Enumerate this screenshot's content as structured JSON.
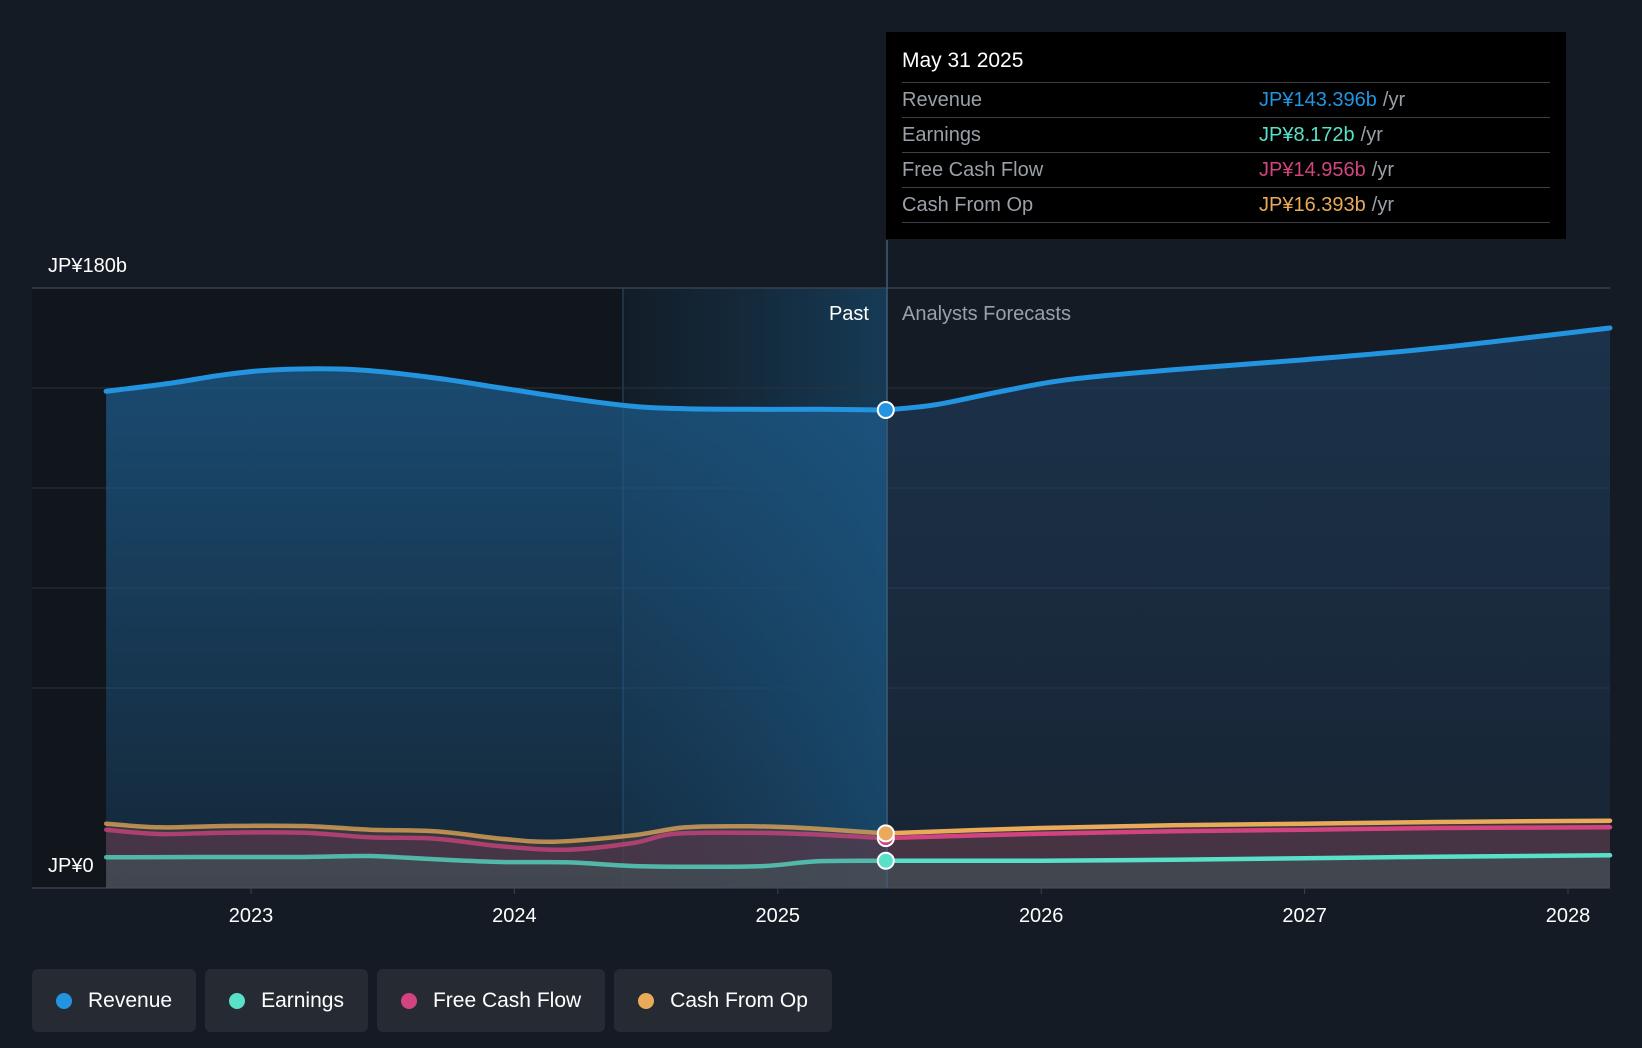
{
  "chart_data": {
    "type": "area",
    "y_top_label": "JP¥180b",
    "y_bottom_label": "JP¥0",
    "ylim": [
      0,
      180
    ],
    "x_ticks": [
      "2023",
      "2024",
      "2025",
      "2026",
      "2027",
      "2028"
    ],
    "past_label": "Past",
    "forecast_label": "Analysts Forecasts",
    "divider_date": "2025-05-31",
    "series": [
      {
        "name": "Revenue",
        "color": "#2394df",
        "past": [
          [
            2022.45,
            149
          ],
          [
            2022.7,
            151.5
          ],
          [
            2022.9,
            154
          ],
          [
            2023.1,
            155.5
          ],
          [
            2023.4,
            155.5
          ],
          [
            2023.7,
            153
          ],
          [
            2023.95,
            150
          ],
          [
            2024.2,
            147
          ],
          [
            2024.45,
            144.5
          ],
          [
            2024.65,
            143.8
          ],
          [
            2024.9,
            143.6
          ],
          [
            2025.15,
            143.6
          ],
          [
            2025.41,
            143.4
          ]
        ],
        "forecast": [
          [
            2025.41,
            143.4
          ],
          [
            2025.6,
            145
          ],
          [
            2025.85,
            149
          ],
          [
            2026.1,
            152.5
          ],
          [
            2026.5,
            155.5
          ],
          [
            2027.0,
            158.5
          ],
          [
            2027.5,
            162
          ],
          [
            2028.2,
            168
          ]
        ]
      },
      {
        "name": "Earnings",
        "color": "#58e0c8",
        "past": [
          [
            2022.45,
            9.2
          ],
          [
            2022.8,
            9.3
          ],
          [
            2023.2,
            9.3
          ],
          [
            2023.45,
            9.6
          ],
          [
            2023.7,
            8.6
          ],
          [
            2023.95,
            7.8
          ],
          [
            2024.2,
            7.7
          ],
          [
            2024.45,
            6.6
          ],
          [
            2024.7,
            6.4
          ],
          [
            2024.95,
            6.6
          ],
          [
            2025.15,
            8.0
          ],
          [
            2025.41,
            8.172
          ]
        ],
        "forecast": [
          [
            2025.41,
            8.172
          ],
          [
            2026.0,
            8.2
          ],
          [
            2026.5,
            8.5
          ],
          [
            2027.0,
            8.9
          ],
          [
            2027.5,
            9.4
          ],
          [
            2028.2,
            9.8
          ]
        ]
      },
      {
        "name": "Free Cash Flow",
        "color": "#d1447f",
        "past": [
          [
            2022.45,
            17.5
          ],
          [
            2022.65,
            16.2
          ],
          [
            2022.9,
            16.6
          ],
          [
            2023.2,
            16.6
          ],
          [
            2023.45,
            15.2
          ],
          [
            2023.7,
            14.8
          ],
          [
            2023.95,
            12.5
          ],
          [
            2024.2,
            11.5
          ],
          [
            2024.45,
            13.5
          ],
          [
            2024.6,
            16.2
          ],
          [
            2024.85,
            16.6
          ],
          [
            2025.1,
            16.2
          ],
          [
            2025.41,
            14.956
          ]
        ],
        "forecast": [
          [
            2025.41,
            14.956
          ],
          [
            2026.0,
            16.3
          ],
          [
            2026.5,
            17.0
          ],
          [
            2027.0,
            17.5
          ],
          [
            2027.5,
            18.0
          ],
          [
            2028.2,
            18.2
          ]
        ]
      },
      {
        "name": "Cash From Op",
        "color": "#e9ab5a",
        "past": [
          [
            2022.45,
            19.3
          ],
          [
            2022.65,
            18.2
          ],
          [
            2022.9,
            18.6
          ],
          [
            2023.2,
            18.6
          ],
          [
            2023.45,
            17.5
          ],
          [
            2023.7,
            17.0
          ],
          [
            2023.95,
            14.8
          ],
          [
            2024.15,
            13.9
          ],
          [
            2024.45,
            15.8
          ],
          [
            2024.65,
            18.2
          ],
          [
            2024.9,
            18.5
          ],
          [
            2025.1,
            18.0
          ],
          [
            2025.41,
            16.393
          ]
        ],
        "forecast": [
          [
            2025.41,
            16.393
          ],
          [
            2026.0,
            18.0
          ],
          [
            2026.5,
            18.8
          ],
          [
            2027.0,
            19.3
          ],
          [
            2027.5,
            19.8
          ],
          [
            2028.2,
            20.2
          ]
        ]
      }
    ]
  },
  "tooltip": {
    "date": "May 31 2025",
    "rows": [
      {
        "label": "Revenue",
        "value": "JP¥143.396b",
        "unit": "/yr",
        "color": "#2394df"
      },
      {
        "label": "Earnings",
        "value": "JP¥8.172b",
        "unit": "/yr",
        "color": "#58e0c8"
      },
      {
        "label": "Free Cash Flow",
        "value": "JP¥14.956b",
        "unit": "/yr",
        "color": "#d1447f"
      },
      {
        "label": "Cash From Op",
        "value": "JP¥16.393b",
        "unit": "/yr",
        "color": "#e9ab5a"
      }
    ]
  },
  "legend": [
    {
      "label": "Revenue",
      "color": "#2394df"
    },
    {
      "label": "Earnings",
      "color": "#58e0c8"
    },
    {
      "label": "Free Cash Flow",
      "color": "#d1447f"
    },
    {
      "label": "Cash From Op",
      "color": "#e9ab5a"
    }
  ]
}
